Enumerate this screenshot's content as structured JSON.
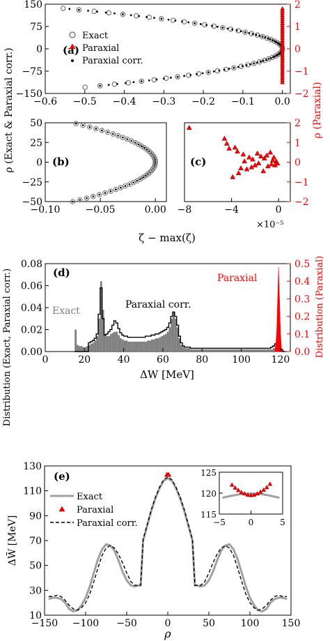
{
  "colors": {
    "black": "#000000",
    "red": "#ff0000",
    "gray": "#808080",
    "lightgray": "#c0c0c0",
    "white": "#ffffff"
  },
  "shared_labels": {
    "y_left_ab": "ρ (Exact & Paraxial corr.)",
    "y_right_ac": "ρ (Paraxial)",
    "x_bc": "ζ − max(ζ)",
    "x_c_multiplier": "×10⁻⁵"
  },
  "chart_data": [
    {
      "panel": "a",
      "tag": "(a)",
      "type": "scatter",
      "xlim": [
        -0.6,
        0.02
      ],
      "ylim": [
        -150,
        150
      ],
      "ylim_right": [
        -2,
        2
      ],
      "xticks": [
        "−0.6",
        "−0.5",
        "−0.4",
        "−0.3",
        "−0.2",
        "−0.1",
        "0.0"
      ],
      "yticks": [
        "−150",
        "−75",
        "0",
        "75",
        "150"
      ],
      "yticks_right": [
        "−2",
        "−1",
        "0",
        "1",
        "2"
      ],
      "legend": {
        "entries": [
          "Exact",
          "Paraxial",
          "Paraxial corr."
        ],
        "placement": "center-left"
      },
      "series": [
        {
          "name": "Exact",
          "marker": "open-circle",
          "curve": "-0.00003*rho^2",
          "rho_range": [
            -129,
            138
          ]
        },
        {
          "name": "Paraxial corr.",
          "marker": "dot",
          "curve": "-0.00003*rho^2",
          "rho_range": [
            -124,
            134
          ]
        },
        {
          "name": "Paraxial",
          "marker": "red-triangle",
          "axis": "right",
          "zeta_range": [
            -0.0001,
            0.0
          ],
          "rho_range": [
            -1.5,
            1.8
          ]
        }
      ]
    },
    {
      "panel": "b",
      "tag": "(b)",
      "type": "scatter",
      "xlim": [
        -0.1,
        0.01
      ],
      "ylim": [
        -50,
        50
      ],
      "xticks": [
        "−0.10",
        "−0.05",
        "0.00"
      ],
      "yticks": [
        "−50",
        "−25",
        "0",
        "25",
        "50"
      ],
      "series": [
        {
          "name": "Exact",
          "marker": "open-circle",
          "rho_range": [
            -50,
            50
          ]
        },
        {
          "name": "Paraxial corr.",
          "marker": "dot",
          "rho_range": [
            -50,
            50
          ]
        }
      ]
    },
    {
      "panel": "c",
      "tag": "(c)",
      "type": "scatter",
      "xlim": [
        -8,
        1
      ],
      "ylim": [
        -2,
        2
      ],
      "x_multiplier": "1e-5",
      "xticks": [
        "−8",
        "−4",
        "0"
      ],
      "yticks_right": [
        "−2",
        "−1",
        "0",
        "1",
        "2"
      ],
      "series": [
        {
          "name": "Paraxial",
          "marker": "red-triangle",
          "x": [
            -7.6,
            -4.6,
            -4.4,
            -4.2,
            -3.9,
            -3.7,
            -3.5,
            -3.4,
            -3.2,
            -3.0,
            -2.9,
            -2.7,
            -2.5,
            -2.3,
            -2.2,
            -2.0,
            -1.8,
            -1.7,
            -1.5,
            -1.3,
            -1.2,
            -1.0,
            -0.9,
            -0.7,
            -0.6,
            -0.5,
            -0.4,
            -0.3,
            -0.2,
            -0.1
          ],
          "y": [
            1.75,
            1.2,
            0.95,
            0.7,
            -0.75,
            0.75,
            0.55,
            -0.55,
            -0.3,
            0.4,
            0.05,
            -0.35,
            0.25,
            -0.25,
            0.15,
            -0.15,
            0.45,
            -0.05,
            0.3,
            -0.45,
            0.2,
            0.35,
            -0.2,
            0.5,
            -0.1,
            0.1,
            0.25,
            -0.15,
            0.05,
            -0.05
          ]
        }
      ]
    },
    {
      "panel": "d",
      "tag": "(d)",
      "type": "histogram",
      "xlabel": "ΔW [MeV]",
      "ylabel": "Distribution (Exact, Paraxial corr.)",
      "ylabel_right": "Distribution (Paraxial)",
      "xlim": [
        0,
        125
      ],
      "ylim": [
        0,
        0.08
      ],
      "ylim_right": [
        0,
        0.5
      ],
      "xticks": [
        "0",
        "20",
        "40",
        "60",
        "80",
        "100",
        "120"
      ],
      "yticks": [
        "0.00",
        "0.02",
        "0.04",
        "0.06",
        "0.08"
      ],
      "yticks_right": [
        "0.0",
        "0.1",
        "0.2",
        "0.3",
        "0.4",
        "0.5"
      ],
      "annotations": [
        "Exact",
        "Paraxial corr.",
        "Paraxial"
      ],
      "bin_start": 15,
      "bin_width": 1,
      "series": [
        {
          "name": "Exact",
          "style": "filled-gray",
          "values": [
            0.02,
            0.006,
            0.005,
            0.005,
            0.004,
            0.004,
            0.005,
            0.006,
            0.007,
            0.008,
            0.01,
            0.014,
            0.03,
            0.064,
            0.038,
            0.016,
            0.014,
            0.014,
            0.016,
            0.017,
            0.018,
            0.018,
            0.015,
            0.012,
            0.011,
            0.01,
            0.01,
            0.009,
            0.009,
            0.009,
            0.009,
            0.009,
            0.009,
            0.009,
            0.009,
            0.009,
            0.009,
            0.01,
            0.01,
            0.011,
            0.011,
            0.012,
            0.012,
            0.013,
            0.014,
            0.015,
            0.016,
            0.018,
            0.022,
            0.03,
            0.036,
            0.03,
            0.022,
            0.012,
            0.006,
            0.004,
            0.003,
            0.003,
            0.003,
            0.002,
            0.002,
            0.002,
            0.002,
            0.002,
            0.002,
            0.002,
            0.002,
            0.002,
            0.002,
            0.002,
            0.002,
            0.002,
            0.002,
            0.002,
            0.002,
            0.002,
            0.002,
            0.002,
            0.002,
            0.002,
            0.002,
            0.002,
            0.002,
            0.002,
            0.002,
            0.002,
            0.002,
            0.002,
            0.002,
            0.002,
            0.002,
            0.002,
            0.002,
            0.002,
            0.002,
            0.002,
            0.002,
            0.002,
            0.002,
            0.002,
            0.002,
            0.003,
            0.004,
            0.006,
            0.004,
            0.002,
            0.001
          ]
        },
        {
          "name": "Paraxial corr.",
          "style": "step-black",
          "values": [
            0.0,
            0.0,
            0.0,
            0.0,
            0.0,
            0.0,
            0.0,
            0.008,
            0.009,
            0.01,
            0.012,
            0.016,
            0.034,
            0.058,
            0.03,
            0.015,
            0.016,
            0.018,
            0.02,
            0.024,
            0.028,
            0.026,
            0.021,
            0.017,
            0.015,
            0.014,
            0.014,
            0.013,
            0.013,
            0.013,
            0.013,
            0.013,
            0.013,
            0.013,
            0.013,
            0.013,
            0.014,
            0.014,
            0.014,
            0.015,
            0.015,
            0.016,
            0.016,
            0.017,
            0.018,
            0.019,
            0.02,
            0.022,
            0.026,
            0.032,
            0.036,
            0.032,
            0.024,
            0.014,
            0.008,
            0.005,
            0.004,
            0.004,
            0.004,
            0.003,
            0.003,
            0.003,
            0.003,
            0.003,
            0.003,
            0.003,
            0.003,
            0.003,
            0.003,
            0.003,
            0.003,
            0.003,
            0.003,
            0.003,
            0.003,
            0.003,
            0.003,
            0.003,
            0.003,
            0.003,
            0.003,
            0.003,
            0.003,
            0.003,
            0.003,
            0.003,
            0.003,
            0.003,
            0.003,
            0.003,
            0.003,
            0.003,
            0.003,
            0.003,
            0.003,
            0.003,
            0.003,
            0.003,
            0.003,
            0.003,
            0.004,
            0.005,
            0.007,
            0.009,
            0.004,
            0.002,
            0.0
          ]
        },
        {
          "name": "Paraxial",
          "style": "filled-red",
          "axis": "right",
          "x": [
            117.0,
            117.5,
            118.0,
            118.5,
            119.0,
            119.5,
            120.0,
            120.5,
            121.0
          ],
          "values": [
            0.0,
            0.03,
            0.1,
            0.28,
            0.48,
            0.3,
            0.1,
            0.02,
            0.0
          ]
        }
      ]
    },
    {
      "panel": "e",
      "tag": "(e)",
      "type": "line",
      "xlabel": "ρ",
      "ylabel": "ΔW̄ [MeV]",
      "xlim": [
        -150,
        150
      ],
      "ylim": [
        10,
        130
      ],
      "xticks": [
        "−150",
        "−100",
        "−50",
        "0",
        "50",
        "100",
        "150"
      ],
      "yticks": [
        "10",
        "30",
        "50",
        "70",
        "90",
        "110",
        "130"
      ],
      "legend": {
        "entries": [
          "Exact",
          "Paraxial",
          "Paraxial corr."
        ],
        "placement": "top-left"
      },
      "x": [
        0,
        5,
        10,
        15,
        20,
        25,
        30,
        33,
        35,
        40,
        45,
        50,
        55,
        60,
        65,
        70,
        75,
        80,
        85,
        90,
        95,
        100,
        105,
        110,
        115,
        120,
        125,
        130,
        135,
        140,
        145
      ],
      "series": [
        {
          "name": "Exact",
          "values": [
            120,
            118,
            112,
            104,
            94,
            82,
            70,
            34,
            34,
            33,
            34,
            38,
            45,
            54,
            62,
            66,
            67,
            63,
            55,
            44,
            33,
            24,
            18,
            14,
            13,
            15,
            20,
            23,
            24,
            24,
            23
          ]
        },
        {
          "name": "Paraxial corr.",
          "values": [
            121,
            119,
            113,
            105,
            95,
            83,
            71,
            34,
            34,
            34,
            37,
            44,
            52,
            59,
            64,
            66,
            64,
            58,
            48,
            37,
            27,
            20,
            16,
            14,
            15,
            18,
            22,
            25,
            26,
            25,
            25
          ]
        },
        {
          "name": "Paraxial",
          "marker": "red-triangle",
          "x": [
            -1,
            1
          ],
          "values": [
            123,
            123
          ]
        }
      ],
      "inset": {
        "xlim": [
          -5,
          5
        ],
        "ylim": [
          115,
          125
        ],
        "xticks": [
          "−5",
          "0",
          "5"
        ],
        "yticks": [
          "115",
          "120",
          "125"
        ],
        "x": [
          -4.5,
          -3.0,
          -1.5,
          0.0,
          1.5,
          3.0,
          4.5
        ],
        "exact": [
          118.9,
          119.4,
          119.8,
          119.9,
          119.8,
          119.4,
          118.9
        ],
        "paraxial_x": [
          -3.0,
          -2.5,
          -2.0,
          -1.5,
          -1.0,
          -0.5,
          0.0,
          0.5,
          1.0,
          1.5,
          2.0,
          2.5,
          3.0
        ],
        "paraxial": [
          122.0,
          121.3,
          120.7,
          120.2,
          119.9,
          119.6,
          119.5,
          119.6,
          119.9,
          120.3,
          120.8,
          121.4,
          122.2
        ]
      }
    }
  ]
}
